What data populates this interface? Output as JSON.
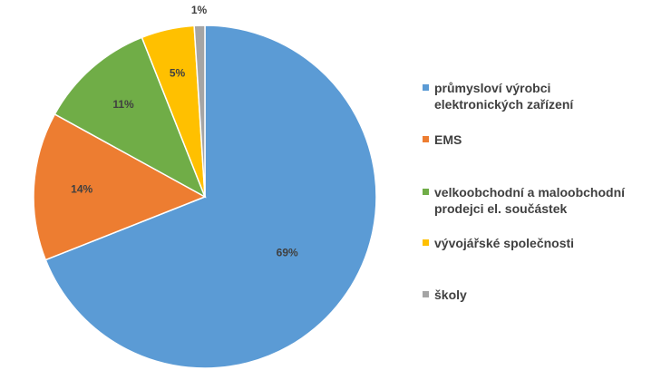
{
  "chart_data": {
    "type": "pie",
    "categories": [
      "průmysloví výrobci\nelektronických zařízení",
      "EMS",
      "velkoobchodní a maloobchodní\nprodejci el. součástek",
      "vývojářské společnosti",
      "školy"
    ],
    "values": [
      69,
      14,
      11,
      5,
      1
    ],
    "data_labels": [
      "69%",
      "14%",
      "11%",
      "5%",
      "1%"
    ],
    "colors": [
      "#5b9bd5",
      "#ed7d31",
      "#70ad47",
      "#ffc000",
      "#a5a5a5"
    ],
    "start_angle_deg": 0,
    "direction": "clockwise",
    "legend_position": "right"
  }
}
